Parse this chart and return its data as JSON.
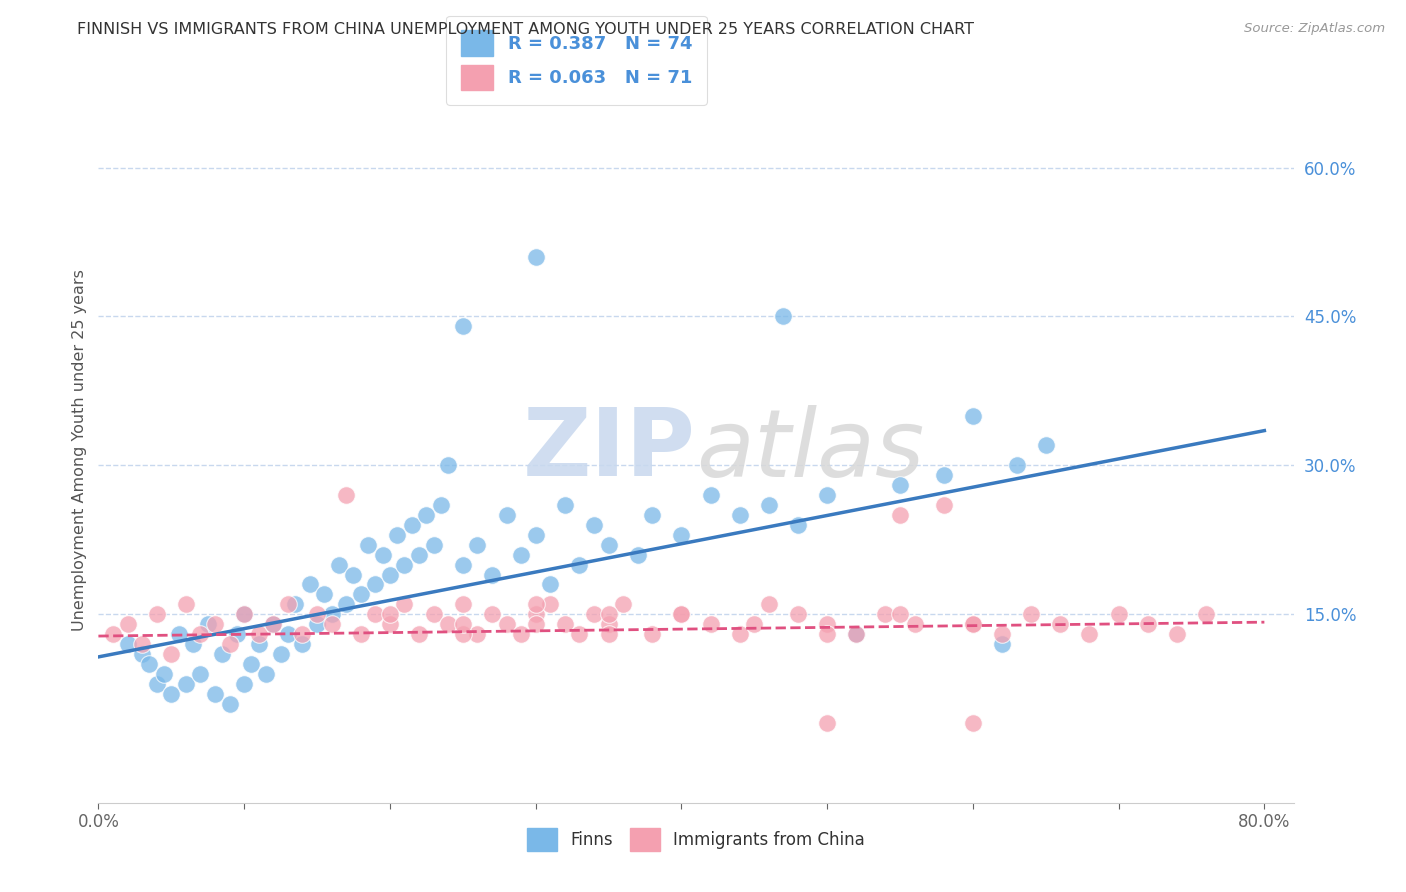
{
  "title": "FINNISH VS IMMIGRANTS FROM CHINA UNEMPLOYMENT AMONG YOUTH UNDER 25 YEARS CORRELATION CHART",
  "source_text": "Source: ZipAtlas.com",
  "ylabel": "Unemployment Among Youth under 25 years",
  "xlim": [
    0.0,
    0.82
  ],
  "ylim": [
    -0.04,
    0.67
  ],
  "yticks": [
    0.0,
    0.15,
    0.3,
    0.45,
    0.6
  ],
  "ytick_labels": [
    "",
    "15.0%",
    "30.0%",
    "45.0%",
    "60.0%"
  ],
  "xtick_positions": [
    0.0,
    0.1,
    0.2,
    0.3,
    0.4,
    0.5,
    0.6,
    0.7,
    0.8
  ],
  "xtick_labels": [
    "0.0%",
    "",
    "",
    "",
    "",
    "",
    "",
    "",
    "80.0%"
  ],
  "legend_label_finns": "R = 0.387   N = 74",
  "legend_label_china": "R = 0.063   N = 71",
  "finns_color": "#7ab8e8",
  "china_color": "#f4a0b0",
  "finns_line_color": "#3a7abf",
  "china_line_color": "#e05080",
  "grid_color": "#c8d8ee",
  "background_color": "#ffffff",
  "watermark_text": "ZIPatlas",
  "finns_line_x": [
    0.0,
    0.8
  ],
  "finns_line_y": [
    0.107,
    0.335
  ],
  "china_line_x": [
    0.0,
    0.8
  ],
  "china_line_y": [
    0.128,
    0.142
  ],
  "finns_x": [
    0.02,
    0.03,
    0.035,
    0.04,
    0.045,
    0.05,
    0.055,
    0.06,
    0.065,
    0.07,
    0.075,
    0.08,
    0.085,
    0.09,
    0.095,
    0.1,
    0.1,
    0.105,
    0.11,
    0.115,
    0.12,
    0.125,
    0.13,
    0.135,
    0.14,
    0.145,
    0.15,
    0.155,
    0.16,
    0.165,
    0.17,
    0.175,
    0.18,
    0.185,
    0.19,
    0.195,
    0.2,
    0.205,
    0.21,
    0.215,
    0.22,
    0.225,
    0.23,
    0.235,
    0.24,
    0.25,
    0.26,
    0.27,
    0.28,
    0.29,
    0.3,
    0.31,
    0.32,
    0.33,
    0.34,
    0.35,
    0.37,
    0.38,
    0.4,
    0.42,
    0.44,
    0.46,
    0.48,
    0.5,
    0.52,
    0.55,
    0.58,
    0.6,
    0.63,
    0.65,
    0.25,
    0.3,
    0.47,
    0.62
  ],
  "finns_y": [
    0.12,
    0.11,
    0.1,
    0.08,
    0.09,
    0.07,
    0.13,
    0.08,
    0.12,
    0.09,
    0.14,
    0.07,
    0.11,
    0.06,
    0.13,
    0.08,
    0.15,
    0.1,
    0.12,
    0.09,
    0.14,
    0.11,
    0.13,
    0.16,
    0.12,
    0.18,
    0.14,
    0.17,
    0.15,
    0.2,
    0.16,
    0.19,
    0.17,
    0.22,
    0.18,
    0.21,
    0.19,
    0.23,
    0.2,
    0.24,
    0.21,
    0.25,
    0.22,
    0.26,
    0.3,
    0.2,
    0.22,
    0.19,
    0.25,
    0.21,
    0.23,
    0.18,
    0.26,
    0.2,
    0.24,
    0.22,
    0.21,
    0.25,
    0.23,
    0.27,
    0.25,
    0.26,
    0.24,
    0.27,
    0.13,
    0.28,
    0.29,
    0.35,
    0.3,
    0.32,
    0.44,
    0.51,
    0.45,
    0.12
  ],
  "china_x": [
    0.01,
    0.02,
    0.03,
    0.04,
    0.05,
    0.06,
    0.07,
    0.08,
    0.09,
    0.1,
    0.11,
    0.12,
    0.13,
    0.14,
    0.15,
    0.16,
    0.17,
    0.18,
    0.19,
    0.2,
    0.21,
    0.22,
    0.23,
    0.24,
    0.25,
    0.26,
    0.27,
    0.28,
    0.29,
    0.3,
    0.31,
    0.32,
    0.33,
    0.34,
    0.35,
    0.36,
    0.38,
    0.4,
    0.42,
    0.44,
    0.46,
    0.48,
    0.5,
    0.52,
    0.54,
    0.56,
    0.58,
    0.6,
    0.62,
    0.64,
    0.66,
    0.68,
    0.7,
    0.72,
    0.74,
    0.76,
    0.25,
    0.3,
    0.35,
    0.4,
    0.45,
    0.5,
    0.55,
    0.6,
    0.2,
    0.25,
    0.3,
    0.35,
    0.5,
    0.55,
    0.6
  ],
  "china_y": [
    0.13,
    0.14,
    0.12,
    0.15,
    0.11,
    0.16,
    0.13,
    0.14,
    0.12,
    0.15,
    0.13,
    0.14,
    0.16,
    0.13,
    0.15,
    0.14,
    0.27,
    0.13,
    0.15,
    0.14,
    0.16,
    0.13,
    0.15,
    0.14,
    0.16,
    0.13,
    0.15,
    0.14,
    0.13,
    0.15,
    0.16,
    0.14,
    0.13,
    0.15,
    0.14,
    0.16,
    0.13,
    0.15,
    0.14,
    0.13,
    0.16,
    0.15,
    0.14,
    0.13,
    0.15,
    0.14,
    0.26,
    0.14,
    0.13,
    0.15,
    0.14,
    0.13,
    0.15,
    0.14,
    0.13,
    0.15,
    0.13,
    0.14,
    0.13,
    0.15,
    0.14,
    0.13,
    0.25,
    0.14,
    0.15,
    0.14,
    0.16,
    0.15,
    0.04,
    0.15,
    0.04
  ]
}
